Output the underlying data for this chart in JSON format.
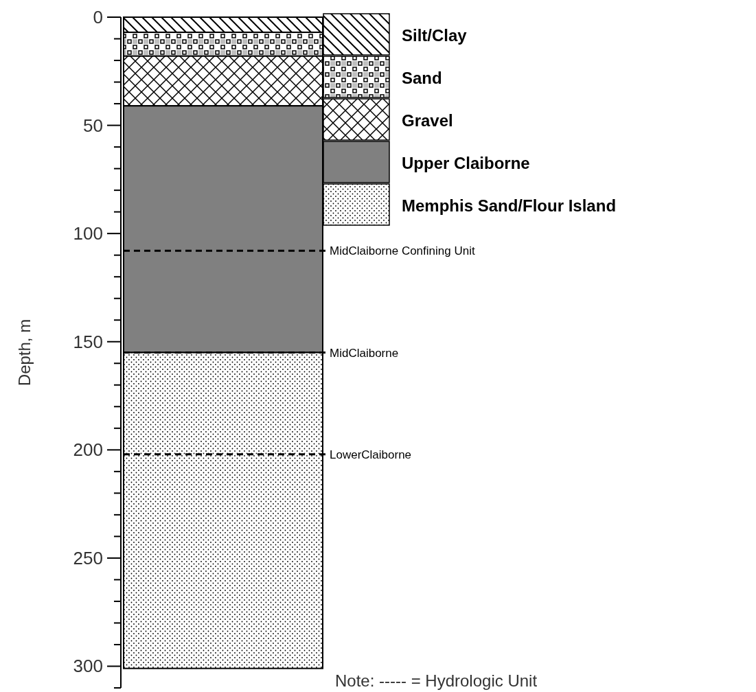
{
  "chart_data": {
    "type": "bar",
    "stacked": true,
    "categories": [
      null
    ],
    "ylabel": "Depth, m",
    "ylim": [
      310,
      0
    ],
    "yticks": [
      0,
      {
        "value": 10,
        "label": null
      },
      {
        "value": 20,
        "label": null
      },
      {
        "value": 30,
        "label": null
      },
      {
        "value": 40,
        "label": null
      },
      50,
      {
        "value": 60,
        "label": null
      },
      {
        "value": 70,
        "label": null
      },
      {
        "value": 80,
        "label": null
      },
      {
        "value": 90,
        "label": null
      },
      100,
      {
        "value": 110,
        "label": null
      },
      {
        "value": 120,
        "label": null
      },
      {
        "value": 130,
        "label": null
      },
      {
        "value": 140,
        "label": null
      },
      150,
      {
        "value": 160,
        "label": null
      },
      {
        "value": 170,
        "label": null
      },
      {
        "value": 180,
        "label": null
      },
      {
        "value": 190,
        "label": null
      },
      200,
      {
        "value": 210,
        "label": null
      },
      {
        "value": 220,
        "label": null
      },
      {
        "value": 230,
        "label": null
      },
      {
        "value": 240,
        "label": null
      },
      250,
      {
        "value": 260,
        "label": null
      },
      {
        "value": 270,
        "label": null
      },
      {
        "value": 280,
        "label": null
      },
      {
        "value": 290,
        "label": null
      },
      300,
      {
        "value": 310,
        "label": null
      }
    ],
    "tick_labels": "y",
    "legend": "top right",
    "series": [
      {
        "name": "Silt/Clay",
        "color": "#000000",
        "values": [
          7
        ]
      },
      {
        "name": "Sand",
        "color": "#000000",
        "values": [
          11
        ]
      },
      {
        "name": "Gravel",
        "color": "#000000",
        "values": [
          23
        ]
      },
      {
        "name": "Upper Claiborne",
        "color": "#808080",
        "values": [
          114
        ]
      },
      {
        "name": "Memphis Sand/Flour Island",
        "color": "#000000",
        "values": [
          146
        ]
      }
    ],
    "ref_lines": [
      {
        "axis": "y",
        "value": 108,
        "label": "MidClaiborne Confining Unit",
        "color": "#000000",
        "line_style": "dashed"
      },
      {
        "axis": "y",
        "value": 155,
        "label": "MidClaiborne",
        "color": "#000000",
        "line_style": "dashed"
      },
      {
        "axis": "y",
        "value": 202,
        "label": "LowerClaiborne",
        "color": "#000000",
        "line_style": "dashed"
      }
    ],
    "annotations": [
      "Note: ----- = Hydrologic Unit"
    ]
  }
}
